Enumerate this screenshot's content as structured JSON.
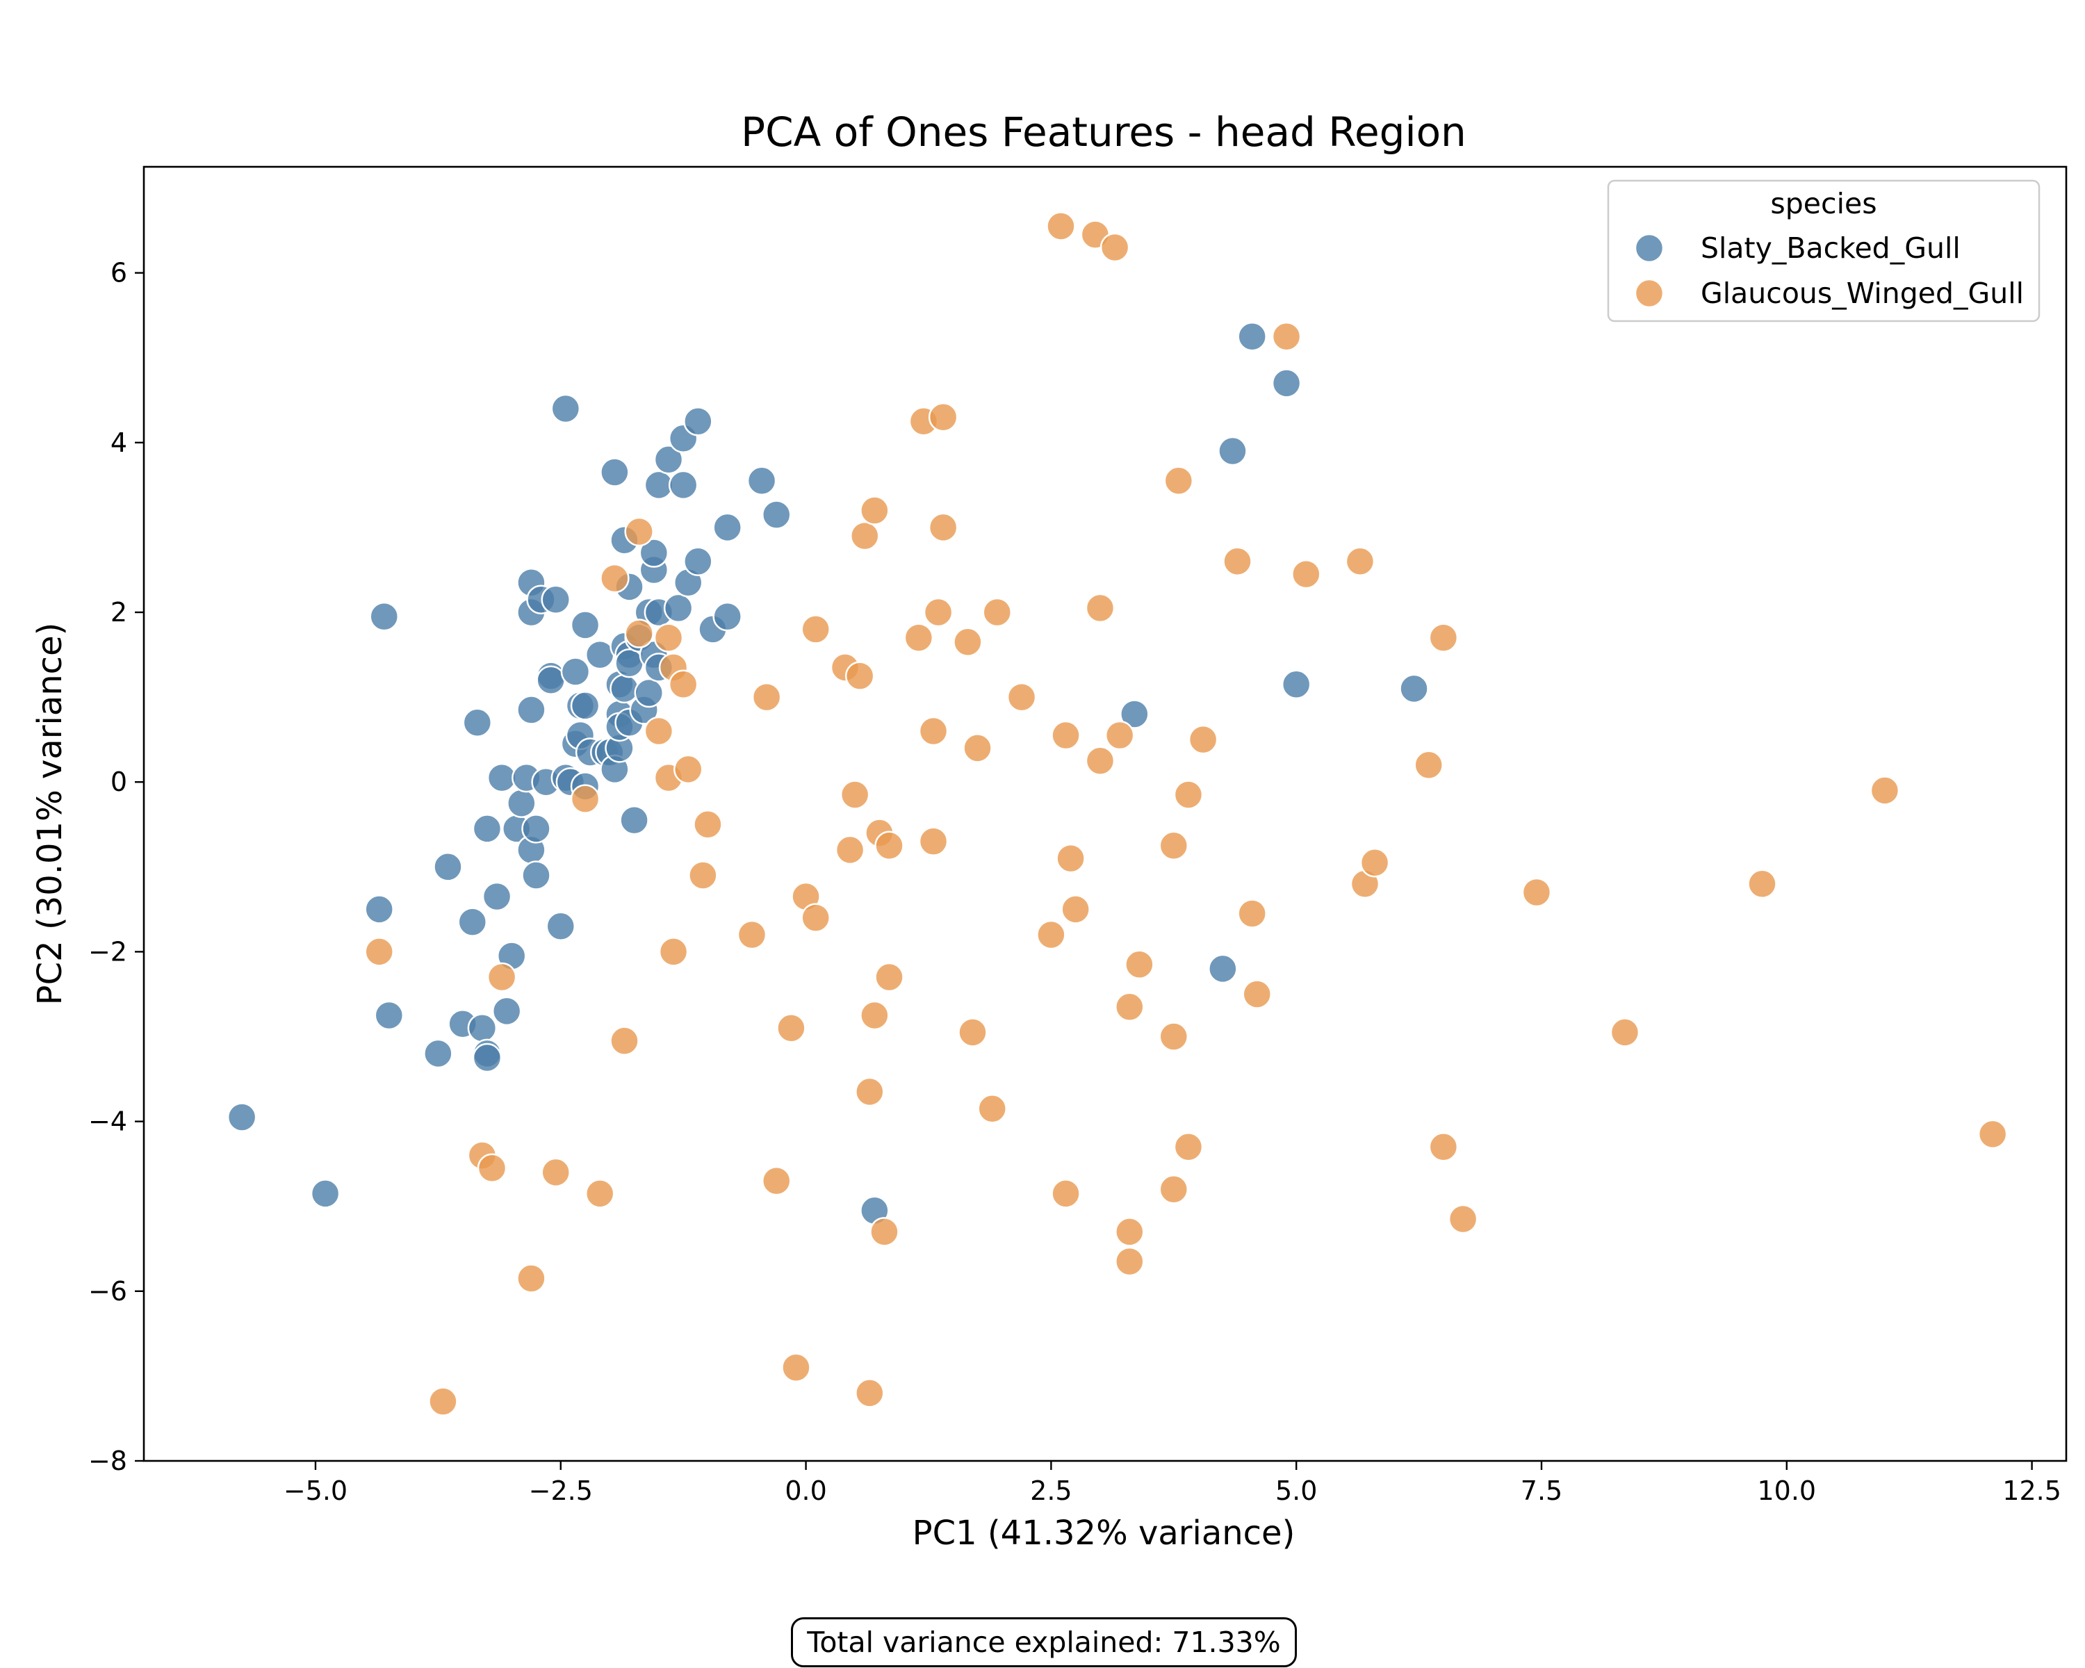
{
  "chart_data": {
    "type": "scatter",
    "title": "PCA of Ones Features - head Region",
    "xlabel": "PC1 (41.32% variance)",
    "ylabel": "PC2 (30.01% variance)",
    "xlim": [
      -6.75,
      12.85
    ],
    "ylim": [
      -8.0,
      7.25
    ],
    "xticks": [
      -5.0,
      -2.5,
      0.0,
      2.5,
      5.0,
      7.5,
      10.0,
      12.5
    ],
    "xtick_labels": [
      "−5.0",
      "−2.5",
      "0.0",
      "2.5",
      "5.0",
      "7.5",
      "10.0",
      "12.5"
    ],
    "yticks": [
      -8,
      -6,
      -4,
      -2,
      0,
      2,
      4,
      6
    ],
    "ytick_labels": [
      "−8",
      "−6",
      "−4",
      "−2",
      "0",
      "2",
      "4",
      "6"
    ],
    "grid": false,
    "legend": {
      "title": "species",
      "placement": "top-right"
    },
    "series": [
      {
        "name": "Slaty_Backed_Gull",
        "color": "#4c7ea9",
        "points": [
          [
            -5.75,
            -3.95
          ],
          [
            -4.9,
            -4.85
          ],
          [
            -4.3,
            1.95
          ],
          [
            -4.35,
            -1.5
          ],
          [
            -4.25,
            -2.75
          ],
          [
            -3.75,
            -3.2
          ],
          [
            -3.65,
            -1.0
          ],
          [
            -3.5,
            -2.85
          ],
          [
            -3.4,
            -1.65
          ],
          [
            -3.35,
            0.7
          ],
          [
            -3.3,
            -2.9
          ],
          [
            -3.25,
            -0.55
          ],
          [
            -3.25,
            -3.2
          ],
          [
            -3.25,
            -3.25
          ],
          [
            -3.15,
            -1.35
          ],
          [
            -3.1,
            0.05
          ],
          [
            -3.05,
            -2.7
          ],
          [
            -3.0,
            -2.05
          ],
          [
            -2.95,
            -0.55
          ],
          [
            -2.9,
            -0.25
          ],
          [
            -2.85,
            0.05
          ],
          [
            -2.8,
            -0.8
          ],
          [
            -2.8,
            2.35
          ],
          [
            -2.8,
            2.0
          ],
          [
            -2.8,
            0.85
          ],
          [
            -2.75,
            -0.55
          ],
          [
            -2.75,
            -1.1
          ],
          [
            -2.7,
            2.15
          ],
          [
            -2.65,
            0.0
          ],
          [
            -2.6,
            1.25
          ],
          [
            -2.6,
            1.2
          ],
          [
            -2.55,
            2.15
          ],
          [
            -2.5,
            -1.7
          ],
          [
            -2.45,
            4.4
          ],
          [
            -2.45,
            0.05
          ],
          [
            -2.4,
            0.0
          ],
          [
            -2.35,
            0.45
          ],
          [
            -2.35,
            1.3
          ],
          [
            -2.3,
            0.55
          ],
          [
            -2.3,
            0.9
          ],
          [
            -2.25,
            0.9
          ],
          [
            -2.25,
            -0.05
          ],
          [
            -2.25,
            1.85
          ],
          [
            -2.2,
            0.35
          ],
          [
            -2.1,
            1.5
          ],
          [
            -2.05,
            0.35
          ],
          [
            -2.0,
            0.35
          ],
          [
            -1.95,
            3.65
          ],
          [
            -1.95,
            0.15
          ],
          [
            -1.9,
            0.4
          ],
          [
            -1.9,
            1.15
          ],
          [
            -1.9,
            0.8
          ],
          [
            -1.9,
            0.65
          ],
          [
            -1.85,
            1.6
          ],
          [
            -1.85,
            1.1
          ],
          [
            -1.85,
            2.85
          ],
          [
            -1.8,
            1.5
          ],
          [
            -1.8,
            1.4
          ],
          [
            -1.8,
            2.3
          ],
          [
            -1.8,
            0.7
          ],
          [
            -1.75,
            -0.45
          ],
          [
            -1.7,
            1.7
          ],
          [
            -1.65,
            0.85
          ],
          [
            -1.6,
            2.0
          ],
          [
            -1.6,
            1.05
          ],
          [
            -1.55,
            1.5
          ],
          [
            -1.55,
            2.5
          ],
          [
            -1.55,
            2.7
          ],
          [
            -1.5,
            3.5
          ],
          [
            -1.5,
            2.0
          ],
          [
            -1.5,
            1.35
          ],
          [
            -1.4,
            3.8
          ],
          [
            -1.3,
            2.05
          ],
          [
            -1.25,
            4.05
          ],
          [
            -1.25,
            3.5
          ],
          [
            -1.2,
            2.35
          ],
          [
            -1.1,
            4.25
          ],
          [
            -1.1,
            2.6
          ],
          [
            -0.95,
            1.8
          ],
          [
            -0.8,
            3.0
          ],
          [
            -0.8,
            1.95
          ],
          [
            -0.45,
            3.55
          ],
          [
            -0.3,
            3.15
          ],
          [
            0.7,
            -5.05
          ],
          [
            3.35,
            0.8
          ],
          [
            4.25,
            -2.2
          ],
          [
            4.35,
            3.9
          ],
          [
            4.55,
            5.25
          ],
          [
            4.9,
            4.7
          ],
          [
            5.0,
            1.15
          ],
          [
            6.2,
            1.1
          ]
        ]
      },
      {
        "name": "Glaucous_Winged_Gull",
        "color": "#e9994f",
        "points": [
          [
            -4.35,
            -2.0
          ],
          [
            -3.7,
            -7.3
          ],
          [
            -3.3,
            -4.4
          ],
          [
            -3.2,
            -4.55
          ],
          [
            -3.1,
            -2.3
          ],
          [
            -2.8,
            -5.85
          ],
          [
            -2.55,
            -4.6
          ],
          [
            -2.25,
            -0.2
          ],
          [
            -2.1,
            -4.85
          ],
          [
            -1.95,
            2.4
          ],
          [
            -1.85,
            -3.05
          ],
          [
            -1.7,
            2.95
          ],
          [
            -1.7,
            1.75
          ],
          [
            -1.5,
            0.6
          ],
          [
            -1.4,
            1.7
          ],
          [
            -1.4,
            0.05
          ],
          [
            -1.35,
            1.35
          ],
          [
            -1.35,
            -2.0
          ],
          [
            -1.25,
            1.15
          ],
          [
            -1.2,
            0.15
          ],
          [
            -1.05,
            -1.1
          ],
          [
            -1.0,
            -0.5
          ],
          [
            -0.55,
            -1.8
          ],
          [
            -0.4,
            1.0
          ],
          [
            -0.3,
            -4.7
          ],
          [
            -0.15,
            -2.9
          ],
          [
            -0.1,
            -6.9
          ],
          [
            0.0,
            -1.35
          ],
          [
            0.1,
            1.8
          ],
          [
            0.1,
            -1.6
          ],
          [
            0.4,
            1.35
          ],
          [
            0.45,
            -0.8
          ],
          [
            0.5,
            -0.15
          ],
          [
            0.55,
            1.25
          ],
          [
            0.6,
            2.9
          ],
          [
            0.65,
            -3.65
          ],
          [
            0.65,
            -7.2
          ],
          [
            0.7,
            -2.75
          ],
          [
            0.7,
            3.2
          ],
          [
            0.75,
            -0.6
          ],
          [
            0.8,
            -5.3
          ],
          [
            0.85,
            -0.75
          ],
          [
            0.85,
            -2.3
          ],
          [
            1.15,
            1.7
          ],
          [
            1.2,
            4.25
          ],
          [
            1.3,
            0.6
          ],
          [
            1.3,
            -0.7
          ],
          [
            1.35,
            2.0
          ],
          [
            1.4,
            4.3
          ],
          [
            1.4,
            3.0
          ],
          [
            1.65,
            1.65
          ],
          [
            1.7,
            -2.95
          ],
          [
            1.75,
            0.4
          ],
          [
            1.9,
            -3.85
          ],
          [
            1.95,
            2.0
          ],
          [
            2.2,
            1.0
          ],
          [
            2.5,
            -1.8
          ],
          [
            2.6,
            6.55
          ],
          [
            2.65,
            0.55
          ],
          [
            2.65,
            -4.85
          ],
          [
            2.7,
            -0.9
          ],
          [
            2.75,
            -1.5
          ],
          [
            2.95,
            6.45
          ],
          [
            3.0,
            2.05
          ],
          [
            3.0,
            0.25
          ],
          [
            3.15,
            6.3
          ],
          [
            3.2,
            0.55
          ],
          [
            3.3,
            -5.3
          ],
          [
            3.3,
            -2.65
          ],
          [
            3.3,
            -5.65
          ],
          [
            3.4,
            -2.15
          ],
          [
            3.75,
            -0.75
          ],
          [
            3.75,
            -3.0
          ],
          [
            3.75,
            -4.8
          ],
          [
            3.8,
            3.55
          ],
          [
            3.9,
            -0.15
          ],
          [
            3.9,
            -4.3
          ],
          [
            4.05,
            0.5
          ],
          [
            4.4,
            2.6
          ],
          [
            4.55,
            -1.55
          ],
          [
            4.6,
            -2.5
          ],
          [
            4.9,
            5.25
          ],
          [
            5.1,
            2.45
          ],
          [
            5.65,
            2.6
          ],
          [
            5.7,
            -1.2
          ],
          [
            5.8,
            -0.95
          ],
          [
            6.35,
            0.2
          ],
          [
            6.5,
            1.7
          ],
          [
            6.5,
            -4.3
          ],
          [
            6.7,
            -5.15
          ],
          [
            7.45,
            -1.3
          ],
          [
            8.35,
            -2.95
          ],
          [
            9.75,
            -1.2
          ],
          [
            11.0,
            -0.1
          ],
          [
            12.1,
            -4.15
          ]
        ]
      }
    ],
    "annotation": "Total variance explained: 71.33%"
  }
}
